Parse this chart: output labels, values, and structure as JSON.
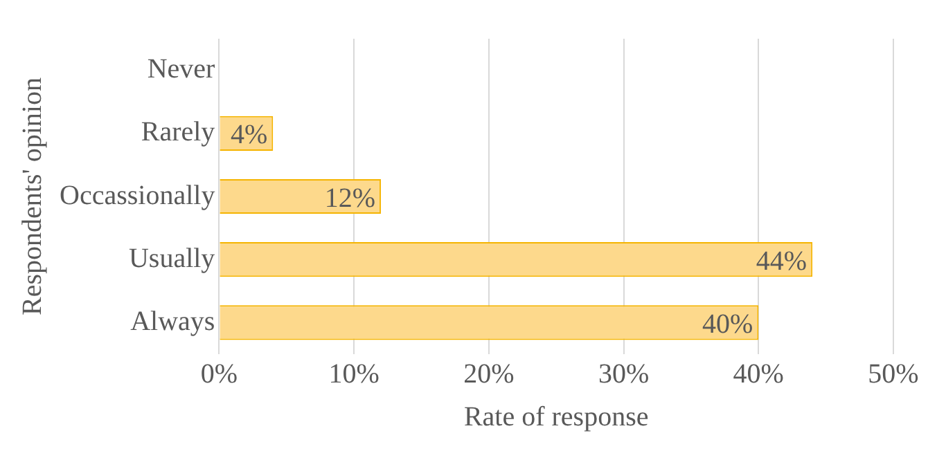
{
  "chart_data": {
    "type": "bar",
    "orientation": "horizontal",
    "xlabel": "Rate of response",
    "ylabel": "Respondents' opinion",
    "categories": [
      "Never",
      "Rarely",
      "Occassionally",
      "Usually",
      "Always"
    ],
    "values": [
      0,
      4,
      12,
      44,
      40
    ],
    "value_labels": [
      null,
      "4%",
      "12%",
      "44%",
      "40%"
    ],
    "color": "#fdd98c",
    "xlim": [
      0,
      50
    ],
    "xticks": [
      {
        "value": 0,
        "label": "0%"
      },
      {
        "value": 10,
        "label": "10%"
      },
      {
        "value": 20,
        "label": "20%"
      },
      {
        "value": 30,
        "label": "30%"
      },
      {
        "value": 40,
        "label": "40%"
      },
      {
        "value": 50,
        "label": "50%"
      }
    ],
    "grid": "x",
    "legend": false
  }
}
